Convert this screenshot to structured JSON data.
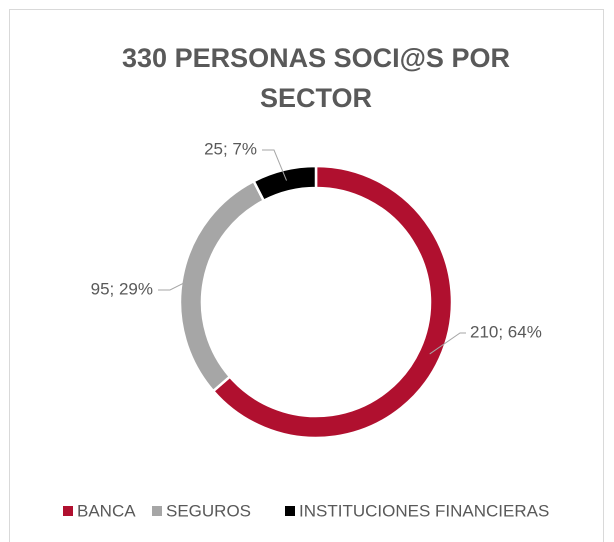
{
  "chart_data": {
    "type": "donut",
    "title": "330 PERSONAS SOCI@S POR SECTOR",
    "categories": [
      "BANCA",
      "SEGUROS",
      "INSTITUCIONES FINANCIERAS"
    ],
    "values": [
      210,
      95,
      25
    ],
    "value_labels": [
      "210; 64%",
      "95; 29%",
      "25; 7%"
    ],
    "colors": [
      "#b0102f",
      "#a6a6a6",
      "#000000"
    ],
    "legend": "bottom"
  }
}
